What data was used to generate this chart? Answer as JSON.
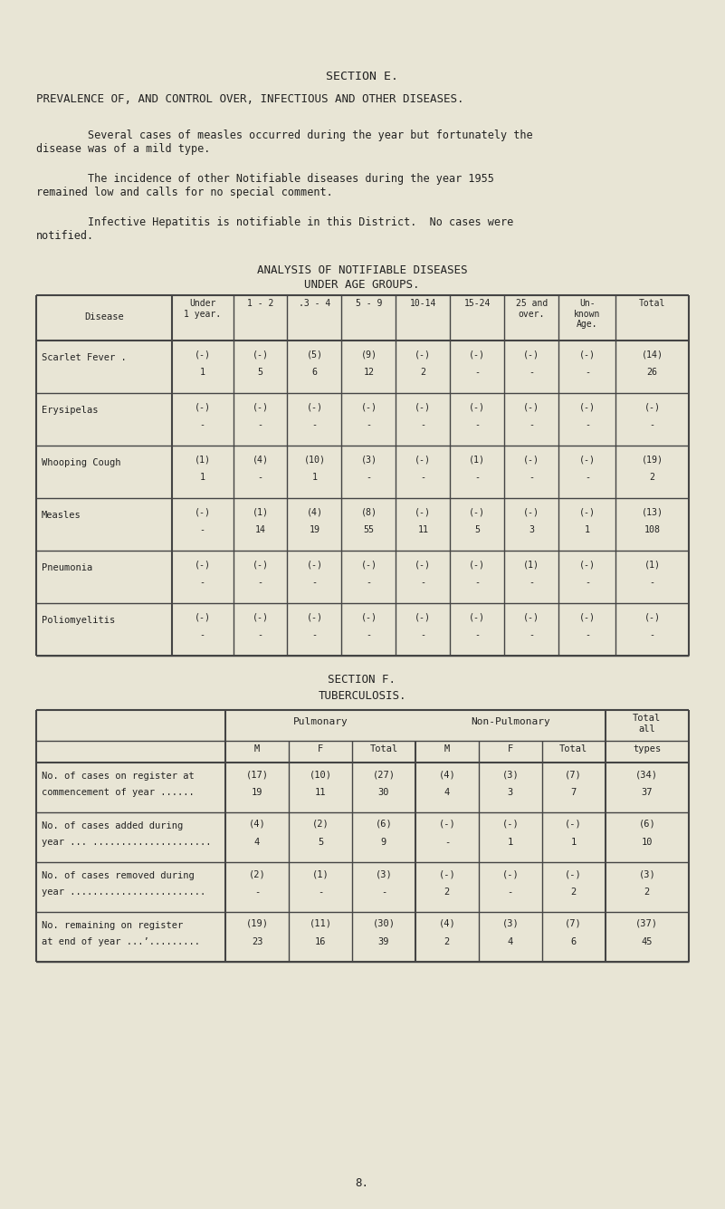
{
  "bg_color": "#e8e5d5",
  "text_color": "#222222",
  "title1": "SECTION E.",
  "title2": "PREVALENCE OF, AND CONTROL OVER, INFECTIOUS AND OTHER DISEASES.",
  "para1a": "        Several cases of measles occurred during the year but fortunately the",
  "para1b": "disease was of a mild type.",
  "para2a": "        The incidence of other Notifiable diseases during the year 1955",
  "para2b": "remained low and calls for no special comment.",
  "para3a": "        Infective Hepatitis is notifiable in this District.  No cases were",
  "para3b": "notified.",
  "table1_title1": "ANALYSIS OF NOTIFIABLE DISEASES",
  "table1_title2": "UNDER AGE GROUPS.",
  "table1_headers": [
    "Disease",
    "Under\n1 year.",
    "1 - 2",
    ".3 - 4",
    "5 - 9",
    "10-14",
    "15-24",
    "25 and\nover.",
    "Un-\nknown\nAge.",
    "Total"
  ],
  "table1_rows": [
    {
      "name": "Scarlet Fever .",
      "data": [
        [
          "(-)",
          "1"
        ],
        [
          "(-)",
          "5"
        ],
        [
          "(5)",
          "6"
        ],
        [
          "(9)",
          "12"
        ],
        [
          "(-)",
          "2"
        ],
        [
          "(-)",
          "-"
        ],
        [
          "(-)",
          "-"
        ],
        [
          "(-)",
          "-"
        ],
        [
          "(14)",
          "26"
        ]
      ]
    },
    {
      "name": "Erysipelas",
      "data": [
        [
          "(-)",
          "-"
        ],
        [
          "(-)",
          "-"
        ],
        [
          "(-)",
          "-"
        ],
        [
          "(-)",
          "-"
        ],
        [
          "(-)",
          "-"
        ],
        [
          "(-)",
          "-"
        ],
        [
          "(-)",
          "-"
        ],
        [
          "(-)",
          "-"
        ],
        [
          "(-)",
          "-"
        ]
      ]
    },
    {
      "name": "Whooping Cough",
      "data": [
        [
          "(1)",
          "1"
        ],
        [
          "(4)",
          "-"
        ],
        [
          "(10)",
          "1"
        ],
        [
          "(3)",
          "-"
        ],
        [
          "(-)",
          "-"
        ],
        [
          "(1)",
          "-"
        ],
        [
          "(-)",
          "-"
        ],
        [
          "(-)",
          "-"
        ],
        [
          "(19)",
          "2"
        ]
      ]
    },
    {
      "name": "Measles",
      "data": [
        [
          "(-)",
          "-"
        ],
        [
          "(1)",
          "14"
        ],
        [
          "(4)",
          "19"
        ],
        [
          "(8)",
          "55"
        ],
        [
          "(-)",
          "11"
        ],
        [
          "(-)",
          "5"
        ],
        [
          "(-)",
          "3"
        ],
        [
          "(-)",
          "1"
        ],
        [
          "(13)",
          "108"
        ]
      ]
    },
    {
      "name": "Pneumonia",
      "data": [
        [
          "(-)",
          "-"
        ],
        [
          "(-)",
          "-"
        ],
        [
          "(-)",
          "-"
        ],
        [
          "(-)",
          "-"
        ],
        [
          "(-)",
          "-"
        ],
        [
          "(-)",
          "-"
        ],
        [
          "(1)",
          "-"
        ],
        [
          "(-)",
          "-"
        ],
        [
          "(1)",
          "-"
        ]
      ]
    },
    {
      "name": "Poliomyelitis",
      "data": [
        [
          "(-)",
          "-"
        ],
        [
          "(-)",
          "-"
        ],
        [
          "(-)",
          "-"
        ],
        [
          "(-)",
          "-"
        ],
        [
          "(-)",
          "-"
        ],
        [
          "(-)",
          "-"
        ],
        [
          "(-)",
          "-"
        ],
        [
          "(-)",
          "-"
        ],
        [
          "(-)",
          "-"
        ]
      ]
    }
  ],
  "section_f_title1": "SECTION F.",
  "section_f_title2": "TUBERCULOSIS.",
  "table2_rows": [
    {
      "label1": "No. of cases on register at",
      "label2": "commencement of year ......",
      "pul_m": [
        "(17)",
        "19"
      ],
      "pul_f": [
        "(10)",
        "11"
      ],
      "pul_t": [
        "(27)",
        "30"
      ],
      "np_m": [
        "(4)",
        "4"
      ],
      "np_f": [
        "(3)",
        "3"
      ],
      "np_t": [
        "(7)",
        "7"
      ],
      "total": [
        "(34)",
        "37"
      ]
    },
    {
      "label1": "No. of cases added during",
      "label2": "year ... .....................",
      "pul_m": [
        "(4)",
        "4"
      ],
      "pul_f": [
        "(2)",
        "5"
      ],
      "pul_t": [
        "(6)",
        "9"
      ],
      "np_m": [
        "(-)",
        "-"
      ],
      "np_f": [
        "(-)",
        "1"
      ],
      "np_t": [
        "(-)",
        "1"
      ],
      "total": [
        "(6)",
        "10"
      ]
    },
    {
      "label1": "No. of cases removed during",
      "label2": "year ........................",
      "pul_m": [
        "(2)",
        "-"
      ],
      "pul_f": [
        "(1)",
        "-"
      ],
      "pul_t": [
        "(3)",
        "-"
      ],
      "np_m": [
        "(-)",
        "2"
      ],
      "np_f": [
        "(-)",
        "-"
      ],
      "np_t": [
        "(-)",
        "2"
      ],
      "total": [
        "(3)",
        "2"
      ]
    },
    {
      "label1": "No. remaining on register",
      "label2": "at end of year ...’.........",
      "pul_m": [
        "(19)",
        "23"
      ],
      "pul_f": [
        "(11)",
        "16"
      ],
      "pul_t": [
        "(30)",
        "39"
      ],
      "np_m": [
        "(4)",
        "2"
      ],
      "np_f": [
        "(3)",
        "4"
      ],
      "np_t": [
        "(7)",
        "6"
      ],
      "total": [
        "(37)",
        "45"
      ]
    }
  ],
  "page_number": "8."
}
